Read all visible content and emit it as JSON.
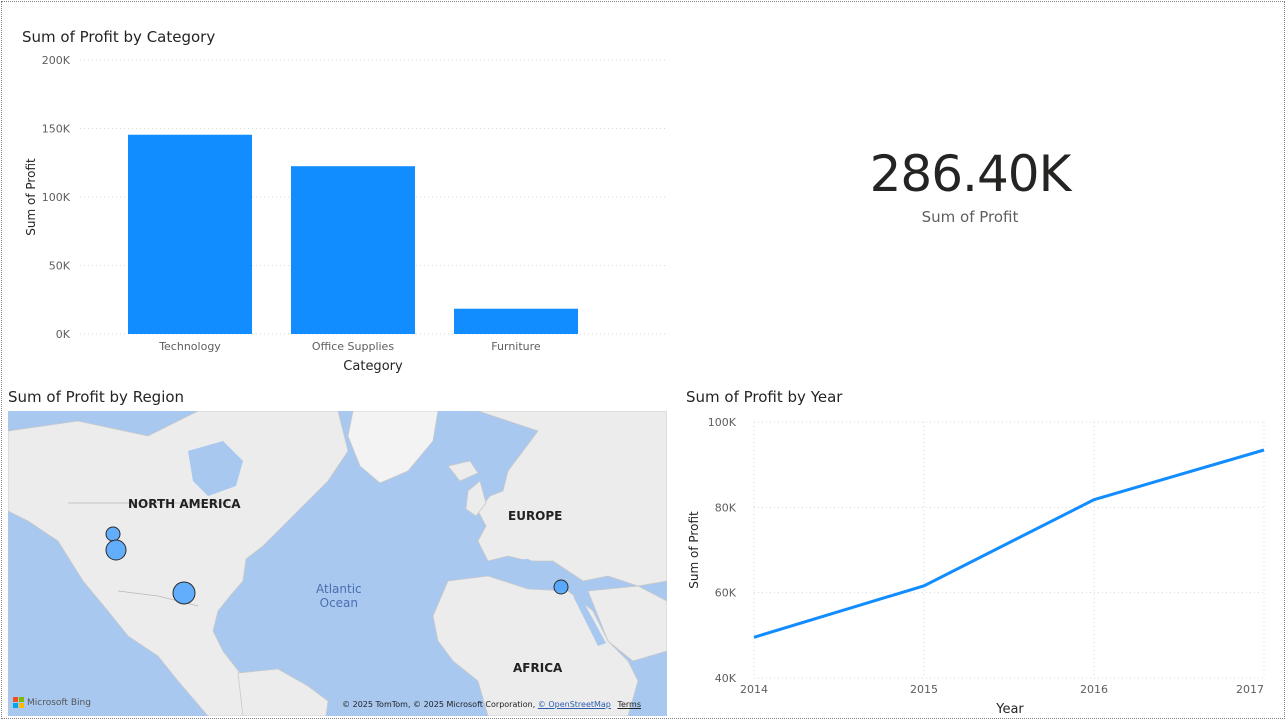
{
  "category_chart": {
    "title": "Sum of Profit by Category",
    "xlabel": "Category",
    "ylabel": "Sum of Profit",
    "yticks": [
      "0K",
      "50K",
      "100K",
      "150K",
      "200K"
    ]
  },
  "kpi": {
    "value": "286.40K",
    "label": "Sum of Profit"
  },
  "region_map": {
    "title": "Sum of Profit by Region",
    "labels": {
      "north_america": "NORTH AMERICA",
      "europe": "EUROPE",
      "africa": "AFRICA",
      "atlantic_line1": "Atlantic",
      "atlantic_line2": "Ocean"
    },
    "logo": "Microsoft Bing",
    "attribution": "© 2025 TomTom, © 2025 Microsoft Corporation,",
    "osm_link": "© OpenStreetMap",
    "terms_link": "Terms"
  },
  "year_chart": {
    "title": "Sum of Profit by Year",
    "xlabel": "Year",
    "ylabel": "Sum of Profit",
    "yticks": [
      "40K",
      "60K",
      "80K",
      "100K"
    ],
    "xticks": [
      "2014",
      "2015",
      "2016",
      "2017"
    ]
  },
  "chart_data": [
    {
      "type": "bar",
      "title": "Sum of Profit by Category",
      "categories": [
        "Technology",
        "Office Supplies",
        "Furniture"
      ],
      "values": [
        145455,
        122490,
        18451
      ],
      "xlabel": "Category",
      "ylabel": "Sum of Profit",
      "ylim": [
        0,
        200000
      ],
      "grid": true,
      "color": "#118DFF"
    },
    {
      "type": "line",
      "title": "Sum of Profit by Year",
      "x": [
        2014,
        2015,
        2016,
        2017
      ],
      "values": [
        49544,
        61619,
        81795,
        93439
      ],
      "xlabel": "Year",
      "ylabel": "Sum of Profit",
      "ylim": [
        40000,
        100000
      ],
      "grid": true,
      "color": "#118DFF"
    }
  ],
  "colors": {
    "accent": "#118DFF",
    "water": "#A8C8F0",
    "land": "#EDEDED",
    "text": "#252423"
  }
}
